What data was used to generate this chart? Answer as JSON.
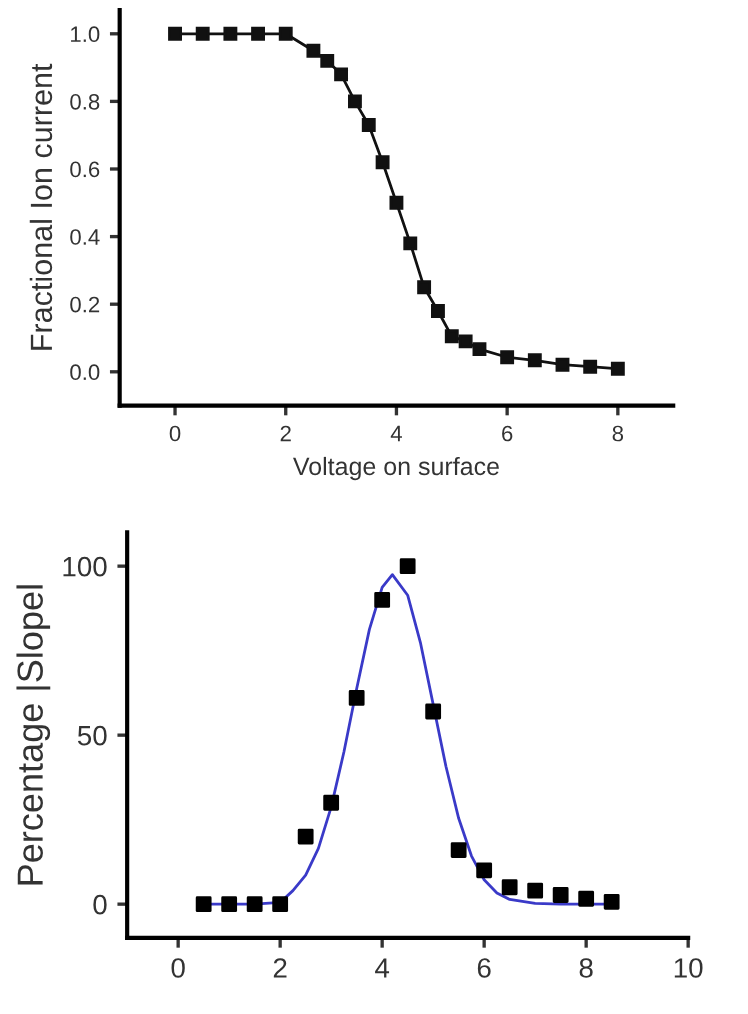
{
  "chart_data": [
    {
      "type": "line",
      "xlabel": "Voltage on surface",
      "ylabel": "Fractional Ion current",
      "marker": "square",
      "line_style": "solid",
      "grid": false,
      "legend": false,
      "x": [
        0,
        0.5,
        1,
        1.5,
        2,
        2.5,
        2.75,
        3,
        3.25,
        3.5,
        3.75,
        4,
        4.25,
        4.5,
        4.75,
        5,
        5.25,
        5.5,
        6,
        6.5,
        7,
        7.5,
        8
      ],
      "series": [
        {
          "color": "#111111",
          "values": [
            1.0,
            1.0,
            1.0,
            1.0,
            1.0,
            0.95,
            0.92,
            0.88,
            0.8,
            0.73,
            0.62,
            0.5,
            0.38,
            0.25,
            0.18,
            0.105,
            0.09,
            0.067,
            0.043,
            0.034,
            0.021,
            0.015,
            0.009
          ]
        }
      ],
      "xlim": [
        -1,
        9
      ],
      "ylim": [
        -0.1,
        1.07
      ],
      "xticks": [
        0,
        2,
        4,
        6,
        8
      ],
      "yticks": [
        {
          "value": 0,
          "label": "0.0"
        },
        0.2,
        0.4,
        0.6,
        0.8,
        {
          "value": 1,
          "label": "1.0"
        }
      ]
    },
    {
      "type": "scatter",
      "ylabel": "Percentage |Slopel",
      "grid": false,
      "legend": false,
      "series": [
        {
          "type": "scatter",
          "marker": "square",
          "color": "#000000",
          "x": [
            0.5,
            1,
            1.5,
            2,
            2.5,
            3,
            3.5,
            4,
            4.5,
            5,
            5.5,
            6,
            6.5,
            7,
            7.5,
            8,
            8.5
          ],
          "values": [
            0,
            0,
            0,
            0,
            20,
            30,
            61,
            90,
            100,
            57,
            16,
            10,
            5,
            4,
            2.7,
            1.6,
            0.7
          ]
        },
        {
          "type": "line",
          "marker": "none",
          "color": "#3a3ac8",
          "x": [
            0.5,
            1,
            1.5,
            2,
            2.25,
            2.5,
            2.75,
            3,
            3.25,
            3.5,
            3.75,
            4,
            4.2,
            4.5,
            4.75,
            5,
            5.25,
            5.5,
            5.75,
            6,
            6.25,
            6.5,
            7,
            7.5,
            8.5
          ],
          "values": [
            0,
            0,
            0,
            0.5,
            4,
            8.6,
            16.5,
            28.7,
            45,
            63.7,
            81.3,
            93.7,
            97.5,
            91.4,
            77.4,
            59.1,
            40.8,
            25.4,
            14.3,
            7.2,
            3.3,
            1.4,
            0.2,
            0,
            0
          ]
        }
      ],
      "xlim": [
        -1,
        10
      ],
      "ylim": [
        -10,
        110
      ],
      "xticks": [
        0,
        2,
        4,
        6,
        8,
        10
      ],
      "yticks": [
        0,
        50,
        100
      ]
    }
  ]
}
